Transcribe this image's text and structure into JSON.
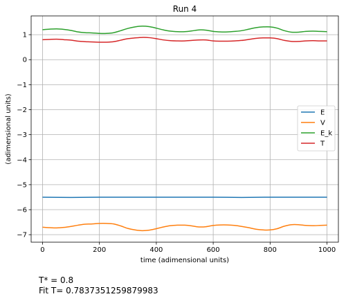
{
  "chart_data": {
    "type": "line",
    "title": "Run 4",
    "xlabel": "time (adimensional units)",
    "ylabel": "(adimensional units)",
    "xlim": [
      -40,
      1040
    ],
    "ylim": [
      -7.3,
      1.75
    ],
    "xticks": [
      0,
      200,
      400,
      600,
      800,
      1000
    ],
    "yticks": [
      1,
      0,
      -1,
      -2,
      -3,
      -4,
      -5,
      -6,
      -7
    ],
    "grid": true,
    "legend_position": "center-right",
    "series": [
      {
        "name": "E",
        "color": "#1f77b4",
        "x": [
          0,
          100,
          200,
          300,
          400,
          500,
          600,
          700,
          800,
          900,
          1000
        ],
        "y": [
          -5.5,
          -5.51,
          -5.5,
          -5.5,
          -5.5,
          -5.5,
          -5.5,
          -5.51,
          -5.5,
          -5.5,
          -5.5
        ]
      },
      {
        "name": "V",
        "color": "#ff7f0e",
        "x": [
          0,
          25,
          50,
          75,
          100,
          125,
          150,
          175,
          200,
          225,
          250,
          275,
          300,
          325,
          350,
          375,
          400,
          425,
          450,
          475,
          500,
          525,
          550,
          575,
          600,
          625,
          650,
          675,
          700,
          725,
          750,
          775,
          800,
          825,
          850,
          875,
          900,
          925,
          950,
          975,
          1000
        ],
        "y": [
          -6.7,
          -6.72,
          -6.73,
          -6.71,
          -6.67,
          -6.62,
          -6.58,
          -6.57,
          -6.55,
          -6.55,
          -6.57,
          -6.65,
          -6.75,
          -6.81,
          -6.84,
          -6.82,
          -6.76,
          -6.69,
          -6.64,
          -6.62,
          -6.62,
          -6.65,
          -6.69,
          -6.68,
          -6.63,
          -6.61,
          -6.61,
          -6.63,
          -6.67,
          -6.72,
          -6.78,
          -6.81,
          -6.81,
          -6.76,
          -6.66,
          -6.6,
          -6.6,
          -6.63,
          -6.64,
          -6.63,
          -6.62
        ]
      },
      {
        "name": "E_k",
        "color": "#2ca02c",
        "x": [
          0,
          25,
          50,
          75,
          100,
          125,
          150,
          175,
          200,
          225,
          250,
          275,
          300,
          325,
          350,
          375,
          400,
          425,
          450,
          475,
          500,
          525,
          550,
          575,
          600,
          625,
          650,
          675,
          700,
          725,
          750,
          775,
          800,
          825,
          850,
          875,
          900,
          925,
          950,
          975,
          1000
        ],
        "y": [
          1.2,
          1.22,
          1.23,
          1.21,
          1.17,
          1.11,
          1.08,
          1.07,
          1.05,
          1.05,
          1.08,
          1.16,
          1.25,
          1.31,
          1.34,
          1.32,
          1.26,
          1.19,
          1.14,
          1.12,
          1.12,
          1.15,
          1.19,
          1.18,
          1.13,
          1.11,
          1.11,
          1.13,
          1.16,
          1.22,
          1.28,
          1.31,
          1.31,
          1.26,
          1.16,
          1.1,
          1.1,
          1.13,
          1.14,
          1.13,
          1.12
        ]
      },
      {
        "name": "T",
        "color": "#d62728",
        "x": [
          0,
          25,
          50,
          75,
          100,
          125,
          150,
          175,
          200,
          225,
          250,
          275,
          300,
          325,
          350,
          375,
          400,
          425,
          450,
          475,
          500,
          525,
          550,
          575,
          600,
          625,
          650,
          675,
          700,
          725,
          750,
          775,
          800,
          825,
          850,
          875,
          900,
          925,
          950,
          975,
          1000
        ],
        "y": [
          0.8,
          0.81,
          0.82,
          0.8,
          0.78,
          0.74,
          0.72,
          0.71,
          0.7,
          0.7,
          0.72,
          0.78,
          0.84,
          0.87,
          0.89,
          0.88,
          0.84,
          0.79,
          0.76,
          0.75,
          0.75,
          0.77,
          0.79,
          0.79,
          0.75,
          0.74,
          0.74,
          0.75,
          0.77,
          0.81,
          0.85,
          0.87,
          0.87,
          0.84,
          0.77,
          0.73,
          0.73,
          0.75,
          0.76,
          0.75,
          0.75
        ]
      }
    ]
  },
  "caption": {
    "line1": "T* = 0.8",
    "line2": "Fit T= 0.7837351259879983"
  }
}
